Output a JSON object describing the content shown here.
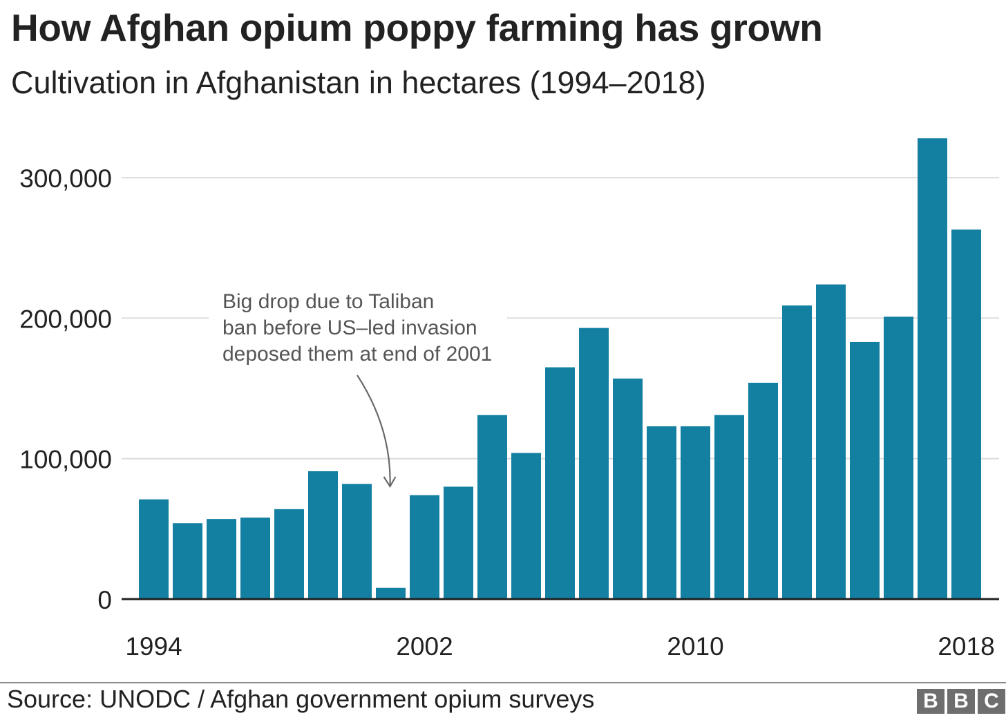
{
  "chart_data": {
    "type": "bar",
    "title": "How Afghan opium poppy farming has grown",
    "subtitle": "Cultivation in Afghanistan in hectares (1994–2018)",
    "categories": [
      1994,
      1995,
      1996,
      1997,
      1998,
      1999,
      2000,
      2001,
      2002,
      2003,
      2004,
      2005,
      2006,
      2007,
      2008,
      2009,
      2010,
      2011,
      2012,
      2013,
      2014,
      2015,
      2016,
      2017,
      2018
    ],
    "values": [
      71000,
      54000,
      57000,
      58000,
      64000,
      91000,
      82000,
      8000,
      74000,
      80000,
      131000,
      104000,
      165000,
      193000,
      157000,
      123000,
      123000,
      131000,
      154000,
      209000,
      224000,
      183000,
      201000,
      328000,
      263000
    ],
    "x_tick_labels": [
      "1994",
      "2002",
      "2010",
      "2018"
    ],
    "y_ticks": [
      0,
      100000,
      200000,
      300000
    ],
    "y_tick_labels": [
      "0",
      "100,000",
      "200,000",
      "300,000"
    ],
    "ylim": [
      0,
      330000
    ],
    "grid": true,
    "bar_color": "#1380a1",
    "annotation": {
      "lines": [
        "Big drop due to Taliban",
        "ban before US–led invasion",
        "deposed them at end of 2001"
      ],
      "points_to": 2001
    },
    "source": "Source: UNODC / Afghan government opium surveys"
  },
  "colors": {
    "bar": "#1380a1",
    "grid": "#dcdcdc",
    "baseline": "#222222",
    "text": "#222222",
    "annotation_text": "#555555",
    "logo": "#6e6e6e"
  },
  "logo_letters": [
    "B",
    "B",
    "C"
  ]
}
